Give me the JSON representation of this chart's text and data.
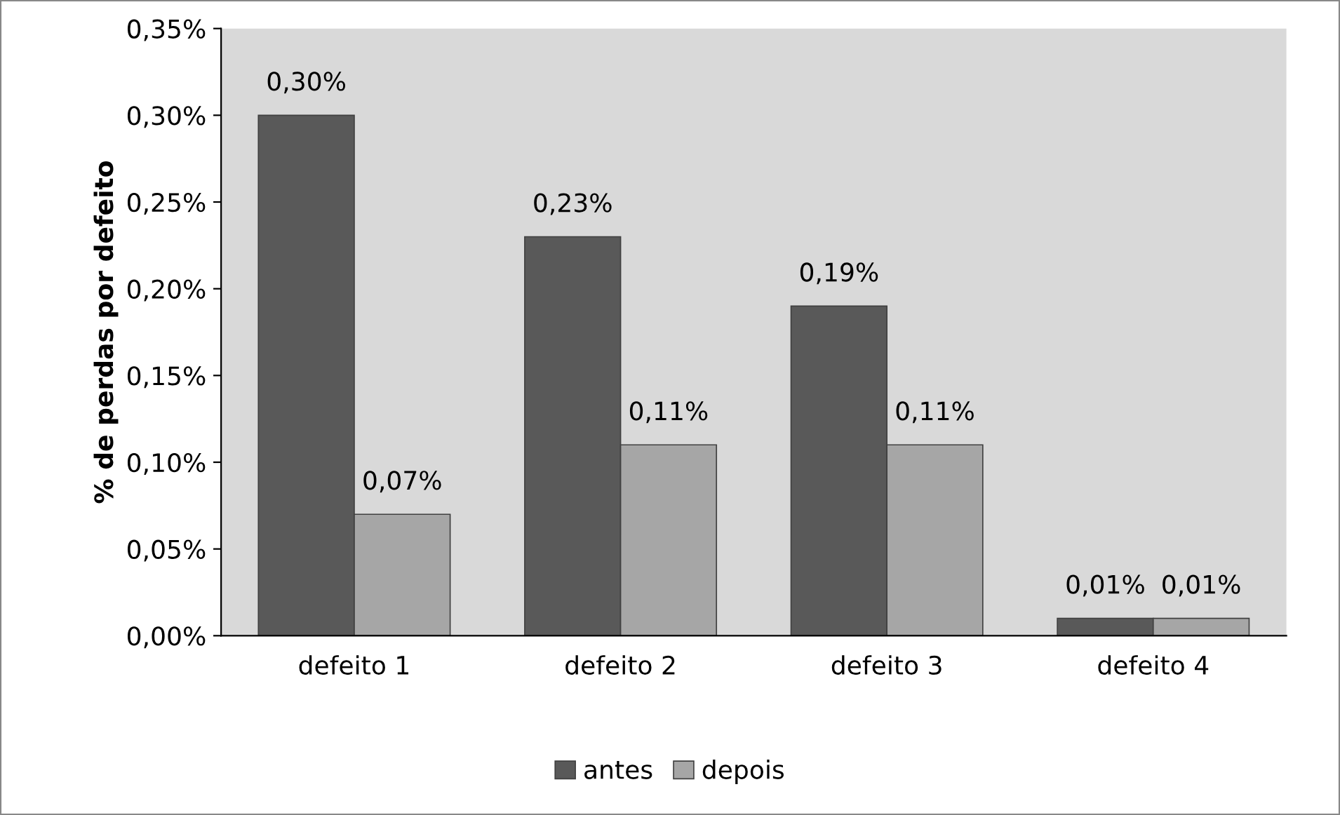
{
  "chart_data": {
    "type": "bar",
    "ylabel": "% de perdas por defeito",
    "categories": [
      "defeito 1",
      "defeito 2",
      "defeito 3",
      "defeito 4"
    ],
    "series": [
      {
        "name": "antes",
        "color": "#595959",
        "values": [
          0.3,
          0.23,
          0.19,
          0.01
        ],
        "value_labels": [
          "0,30%",
          "0,23%",
          "0,19%",
          "0,01%"
        ]
      },
      {
        "name": "depois",
        "color": "#a6a6a6",
        "values": [
          0.07,
          0.11,
          0.11,
          0.01
        ],
        "value_labels": [
          "0,07%",
          "0,11%",
          "0,11%",
          "0,01%"
        ]
      }
    ],
    "ylim": [
      0,
      0.35
    ],
    "yticks": [
      {
        "value": 0,
        "label": "0,00%"
      },
      {
        "value": 0.05,
        "label": "0,05%"
      },
      {
        "value": 0.1,
        "label": "0,10%"
      },
      {
        "value": 0.15,
        "label": "0,15%"
      },
      {
        "value": 0.2,
        "label": "0,20%"
      },
      {
        "value": 0.25,
        "label": "0,25%"
      },
      {
        "value": 0.3,
        "label": "0,30%"
      },
      {
        "value": 0.35,
        "label": "0,35%"
      }
    ],
    "grid": false,
    "legend": "bottom"
  }
}
